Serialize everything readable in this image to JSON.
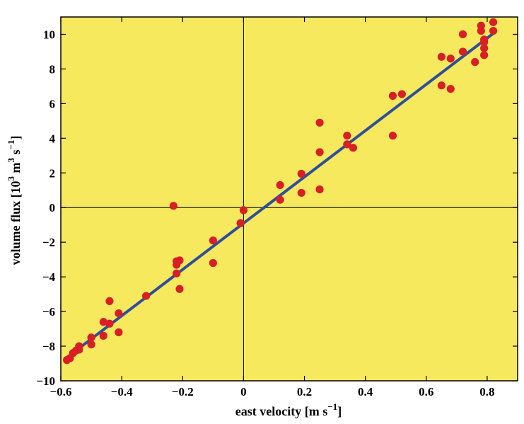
{
  "chart_data": {
    "type": "scatter",
    "xlabel_main": "east velocity [m s",
    "xlabel_sup": "−1",
    "xlabel_end": "]",
    "ylabel_main": "volume flux [10",
    "ylabel_sup1": "3",
    "ylabel_mid": " m",
    "ylabel_sup2": "3",
    "ylabel_mid2": " s",
    "ylabel_sup3": "−1",
    "ylabel_end": "]",
    "xlim": [
      -0.6,
      0.9
    ],
    "ylim": [
      -10,
      11
    ],
    "xticks": [
      -0.6,
      -0.4,
      -0.2,
      0,
      0.2,
      0.4,
      0.6,
      0.8
    ],
    "xtick_labels": [
      "−0.6",
      "−0.4",
      "−0.2",
      "0",
      "0.2",
      "0.4",
      "0.6",
      "0.8"
    ],
    "yticks": [
      -10,
      -8,
      -6,
      -4,
      -2,
      0,
      2,
      4,
      6,
      8,
      10
    ],
    "ytick_labels": [
      "−10",
      "−8",
      "−6",
      "−4",
      "−2",
      "0",
      "2",
      "4",
      "6",
      "8",
      "10"
    ],
    "reference_lines": {
      "x": 0,
      "y": 0
    },
    "background_color": "#f7e95e",
    "point_color": "#d91f26",
    "fit_color": "#2e4f9b",
    "fit_line": {
      "x": [
        -0.58,
        0.82
      ],
      "y": [
        -8.65,
        10.05
      ]
    },
    "points": {
      "x": [
        -0.58,
        -0.57,
        -0.56,
        -0.55,
        -0.54,
        -0.54,
        -0.5,
        -0.5,
        -0.46,
        -0.46,
        -0.44,
        -0.44,
        -0.41,
        -0.41,
        -0.32,
        -0.23,
        -0.22,
        -0.22,
        -0.22,
        -0.21,
        -0.21,
        -0.1,
        -0.1,
        -0.01,
        0,
        0.12,
        0.12,
        0.19,
        0.19,
        0.25,
        0.25,
        0.25,
        0.34,
        0.34,
        0.36,
        0.49,
        0.49,
        0.52,
        0.65,
        0.65,
        0.68,
        0.68,
        0.72,
        0.72,
        0.76,
        0.78,
        0.78,
        0.79,
        0.79,
        0.79,
        0.79,
        0.82,
        0.82
      ],
      "y": [
        -8.8,
        -8.7,
        -8.4,
        -8.25,
        -8.2,
        -8,
        -7.5,
        -7.9,
        -6.6,
        -7.4,
        -5.4,
        -6.7,
        -6.1,
        -7.2,
        -5.1,
        0.1,
        -3.8,
        -3.3,
        -3.1,
        -3.05,
        -4.7,
        -1.9,
        -3.2,
        -0.9,
        -0.15,
        1.3,
        0.45,
        1.95,
        0.85,
        3.2,
        4.9,
        1.05,
        4.15,
        3.65,
        3.45,
        6.45,
        4.15,
        6.55,
        8.7,
        7.05,
        8.6,
        6.85,
        9,
        10,
        8.4,
        10.5,
        10.2,
        9.2,
        9.55,
        8.8,
        9.7,
        10.7,
        10.2
      ]
    }
  }
}
